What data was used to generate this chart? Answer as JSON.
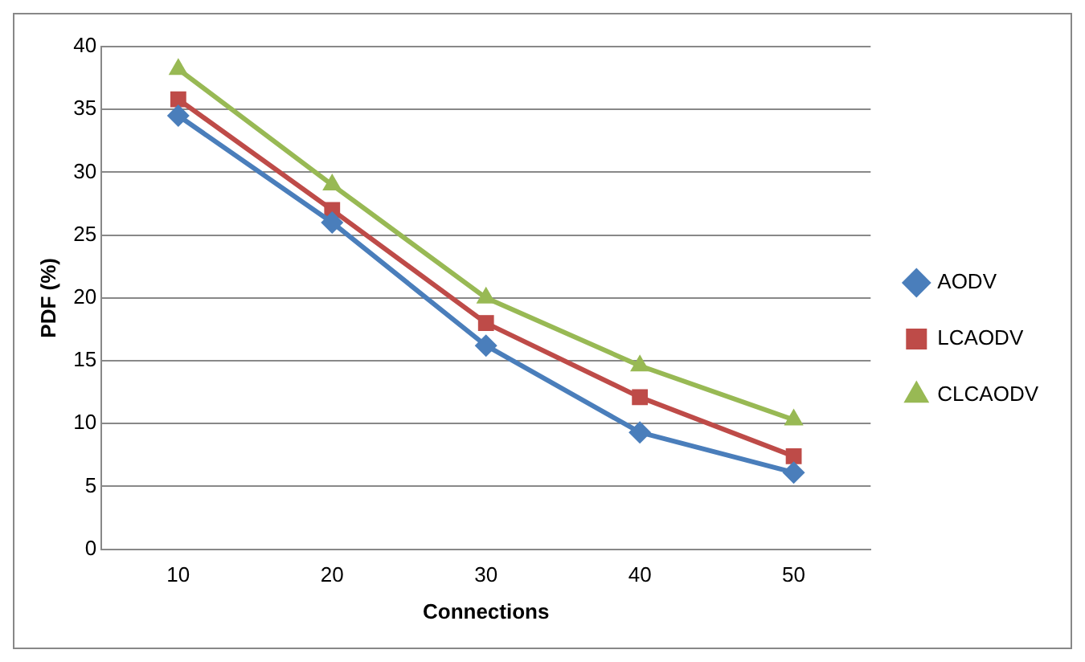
{
  "chart_data": {
    "type": "line",
    "xlabel": "Connections",
    "ylabel": "PDF (%)",
    "categories": [
      "10",
      "20",
      "30",
      "40",
      "50"
    ],
    "ylim": [
      0,
      40
    ],
    "yticks": [
      0,
      5,
      10,
      15,
      20,
      25,
      30,
      35,
      40
    ],
    "grid": "y",
    "legend": "right",
    "series": [
      {
        "name": "AODV",
        "color": "#4a7ebb",
        "marker": "diamond",
        "values": [
          34.5,
          26,
          16.2,
          9.3,
          6.1
        ]
      },
      {
        "name": "LCAODV",
        "color": "#be4b48",
        "marker": "square",
        "values": [
          35.8,
          27,
          18,
          12.1,
          7.4
        ]
      },
      {
        "name": "CLCAODV",
        "color": "#98b954",
        "marker": "triangle",
        "values": [
          38.2,
          29,
          20,
          14.6,
          10.3
        ]
      }
    ]
  }
}
